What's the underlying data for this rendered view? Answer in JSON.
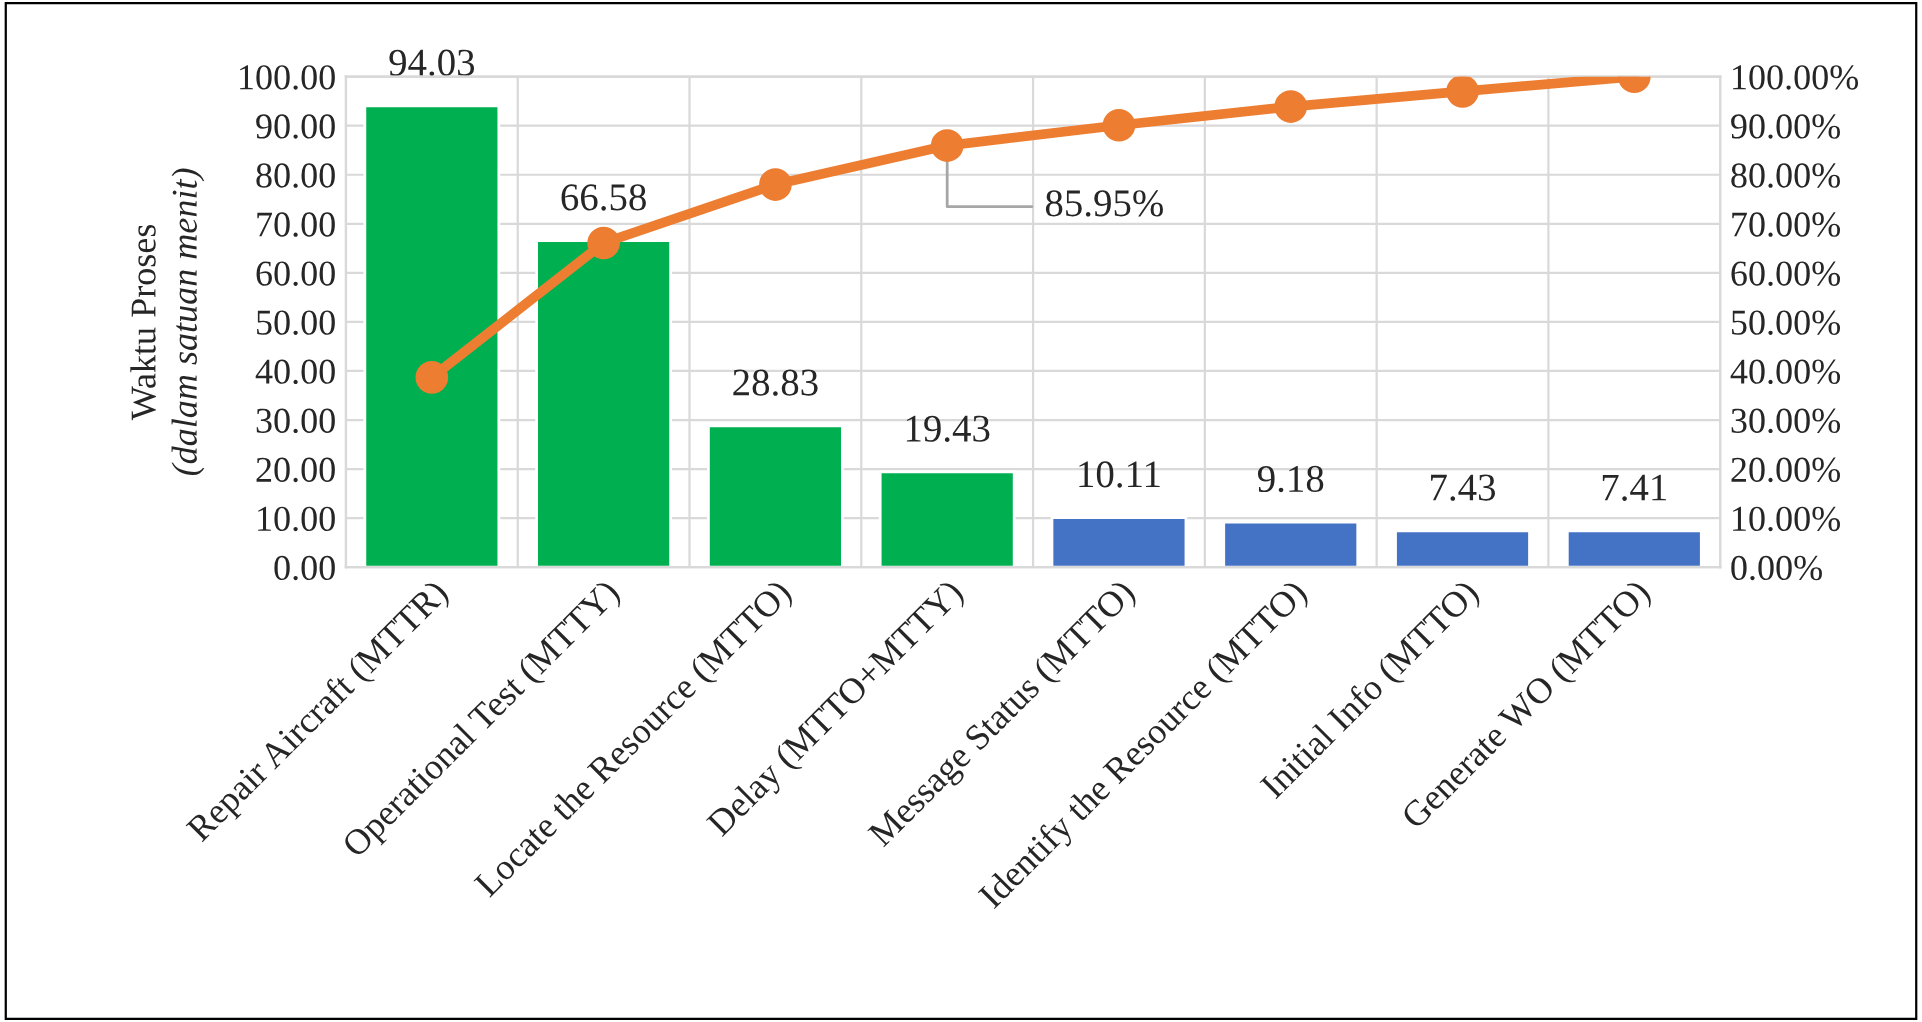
{
  "chart_data": {
    "type": "bar",
    "categories": [
      "Repair Aircraft (MTTR)",
      "Operational Test (MTTY)",
      "Locate the Resource (MTTO)",
      "Delay (MTTO+MTTY)",
      "Message Status (MTTO)",
      "Identify the Resource (MTTO)",
      "Initial Info (MTTO)",
      "Generate WO (MTTO)"
    ],
    "ylabel": "Waktu Proses\n(dalam satuan menit)",
    "series": [
      {
        "colors": [
          "#00b050",
          "#00b050",
          "#00b050",
          "#00b050",
          "#4472c4",
          "#4472c4",
          "#4472c4",
          "#4472c4"
        ],
        "values": [
          94.03,
          66.58,
          28.83,
          19.43,
          10.11,
          9.18,
          7.43,
          7.41
        ],
        "value_labels": [
          "94.03",
          "66.58",
          "28.83",
          "19.43",
          "10.11",
          "9.18",
          "7.43",
          "7.41"
        ]
      },
      {
        "type": "line",
        "axis": "y2",
        "color": "#ed7d31",
        "marker": "circle",
        "values": [
          38.7,
          66.1,
          78.0,
          85.95,
          90.1,
          93.9,
          97.0,
          100.0
        ],
        "value_labels": [
          null,
          null,
          null,
          "85.95%",
          null,
          null,
          null,
          null
        ]
      }
    ],
    "ylim": [
      0,
      100
    ],
    "yticks": [
      {
        "value": 0,
        "label": "0.00"
      },
      {
        "value": 10,
        "label": "10.00"
      },
      {
        "value": 20,
        "label": "20.00"
      },
      {
        "value": 30,
        "label": "30.00"
      },
      {
        "value": 40,
        "label": "40.00"
      },
      {
        "value": 50,
        "label": "50.00"
      },
      {
        "value": 60,
        "label": "60.00"
      },
      {
        "value": 70,
        "label": "70.00"
      },
      {
        "value": 80,
        "label": "80.00"
      },
      {
        "value": 90,
        "label": "90.00"
      },
      {
        "value": 100,
        "label": "100.00"
      }
    ],
    "y2lim": [
      0,
      100
    ],
    "y2ticks": [
      {
        "value": 0,
        "label": "0.00%"
      },
      {
        "value": 10,
        "label": "10.00%"
      },
      {
        "value": 20,
        "label": "20.00%"
      },
      {
        "value": 30,
        "label": "30.00%"
      },
      {
        "value": 40,
        "label": "40.00%"
      },
      {
        "value": 50,
        "label": "50.00%"
      },
      {
        "value": 60,
        "label": "60.00%"
      },
      {
        "value": 70,
        "label": "70.00%"
      },
      {
        "value": 80,
        "label": "80.00%"
      },
      {
        "value": 90,
        "label": "90.00%"
      },
      {
        "value": 100,
        "label": "100.00%"
      }
    ],
    "grid": true
  }
}
